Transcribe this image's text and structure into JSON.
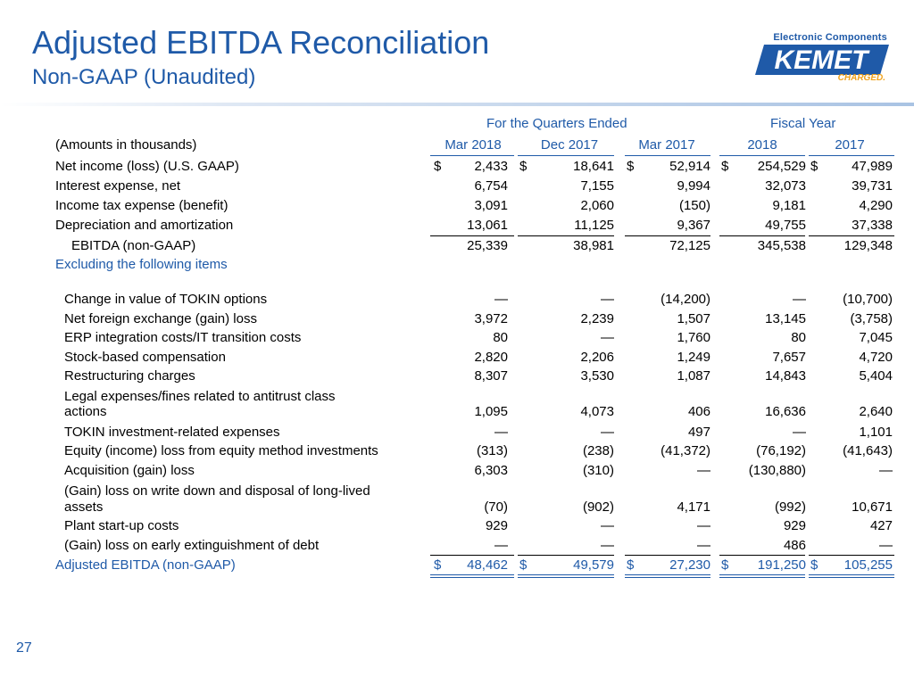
{
  "title": "Adjusted EBITDA Reconciliation",
  "subtitle": "Non-GAAP (Unaudited)",
  "page_number": "27",
  "logo": {
    "tagline": "Electronic Components",
    "brand": "KEMET",
    "slogan": "CHARGED."
  },
  "table": {
    "group_quarters": "For the Quarters Ended",
    "group_fiscal": "Fiscal Year",
    "amounts_label": "(Amounts in thousands)",
    "columns": [
      "Mar 2018",
      "Dec 2017",
      "Mar 2017",
      "2018",
      "2017"
    ],
    "currency": "$",
    "rows": [
      {
        "label": "Net income (loss) (U.S. GAAP)",
        "values": [
          "2,433",
          "18,641",
          "52,914",
          "254,529",
          "47,989"
        ],
        "dollar": true
      },
      {
        "label": "Interest expense, net",
        "values": [
          "6,754",
          "7,155",
          "9,994",
          "32,073",
          "39,731"
        ]
      },
      {
        "label": "Income tax expense (benefit)",
        "values": [
          "3,091",
          "2,060",
          "(150)",
          "9,181",
          "4,290"
        ]
      },
      {
        "label": "Depreciation and amortization",
        "values": [
          "13,061",
          "11,125",
          "9,367",
          "49,755",
          "37,338"
        ]
      },
      {
        "label": "EBITDA (non-GAAP)",
        "values": [
          "25,339",
          "38,981",
          "72,125",
          "345,538",
          "129,348"
        ]
      }
    ],
    "excluding_label": "Excluding the following items",
    "adjustments": [
      {
        "label": "Change in value of TOKIN options",
        "values": [
          "—",
          "—",
          "(14,200)",
          "—",
          "(10,700)"
        ]
      },
      {
        "label": "Net foreign exchange (gain) loss",
        "values": [
          "3,972",
          "2,239",
          "1,507",
          "13,145",
          "(3,758)"
        ]
      },
      {
        "label": "ERP integration costs/IT transition costs",
        "values": [
          "80",
          "—",
          "1,760",
          "80",
          "7,045"
        ]
      },
      {
        "label": "Stock-based compensation",
        "values": [
          "2,820",
          "2,206",
          "1,249",
          "7,657",
          "4,720"
        ]
      },
      {
        "label": "Restructuring charges",
        "values": [
          "8,307",
          "3,530",
          "1,087",
          "14,843",
          "5,404"
        ]
      },
      {
        "label_line1": "Legal expenses/fines related to antitrust class",
        "label_line2": "actions",
        "values": [
          "1,095",
          "4,073",
          "406",
          "16,636",
          "2,640"
        ]
      },
      {
        "label": "TOKIN investment-related expenses",
        "values": [
          "—",
          "—",
          "497",
          "—",
          "1,101"
        ]
      },
      {
        "label": "Equity (income) loss from equity method investments",
        "values": [
          "(313)",
          "(238)",
          "(41,372)",
          "(76,192)",
          "(41,643)"
        ]
      },
      {
        "label": "Acquisition (gain) loss",
        "values": [
          "6,303",
          "(310)",
          "—",
          "(130,880)",
          "—"
        ]
      },
      {
        "label_line1": "(Gain) loss on write down and disposal of long-lived",
        "label_line2": "assets",
        "values": [
          "(70)",
          "(902)",
          "4,171",
          "(992)",
          "10,671"
        ]
      },
      {
        "label": "Plant start-up costs",
        "values": [
          "929",
          "—",
          "—",
          "929",
          "427"
        ]
      },
      {
        "label": "(Gain) loss on early extinguishment of debt",
        "values": [
          "—",
          "—",
          "—",
          "486",
          "—"
        ]
      }
    ],
    "total": {
      "label": "Adjusted EBITDA (non-GAAP)",
      "values": [
        "48,462",
        "49,579",
        "27,230",
        "191,250",
        "105,255"
      ]
    }
  }
}
